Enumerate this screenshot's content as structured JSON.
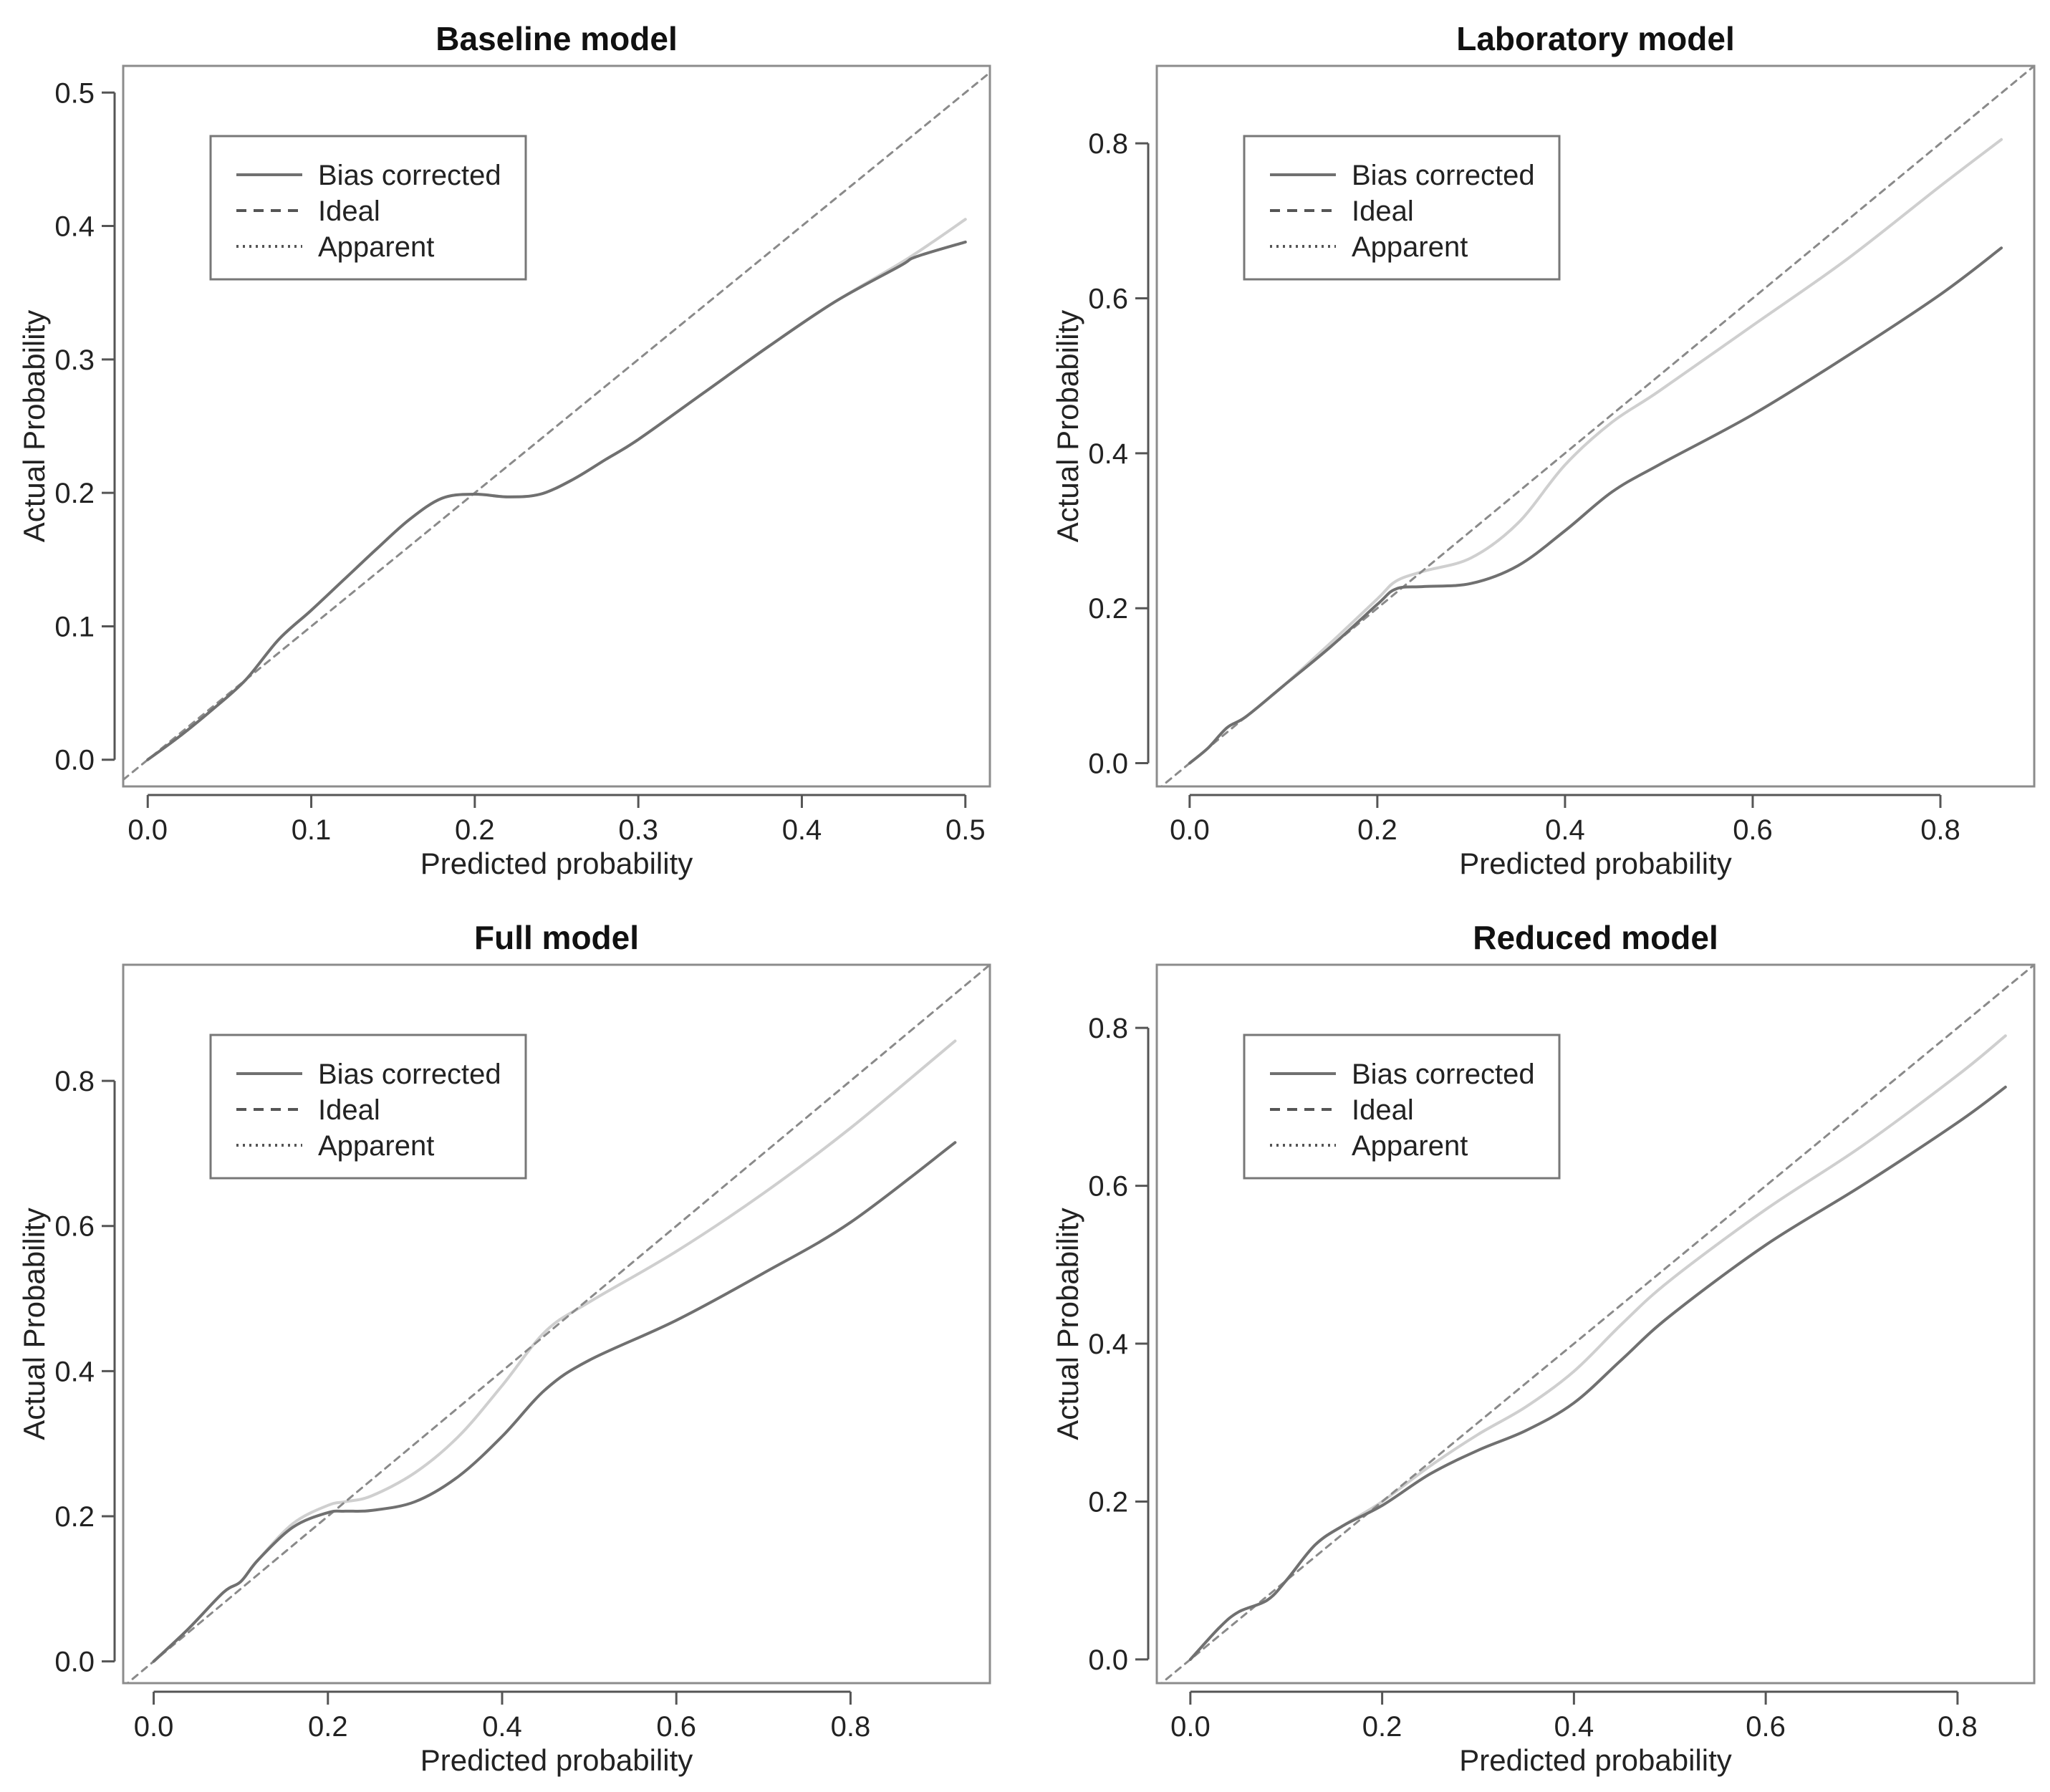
{
  "colors": {
    "bias_corrected": "#707070",
    "apparent": "#cfcfcf",
    "ideal": "#8a8a8a",
    "frame": "#8c8c8c",
    "text": "#222222",
    "background": "#ffffff"
  },
  "chart_data": [
    {
      "type": "line",
      "title": "Baseline model",
      "xlabel": "Predicted probability",
      "ylabel": "Actual Probability",
      "xlim": [
        -0.015,
        0.515
      ],
      "ylim": [
        -0.02,
        0.52
      ],
      "xticks": [
        0.0,
        0.1,
        0.2,
        0.3,
        0.4,
        0.5
      ],
      "xtick_labels": [
        "0.0",
        "0.1",
        "0.2",
        "0.3",
        "0.4",
        "0.5"
      ],
      "yticks": [
        0.0,
        0.1,
        0.2,
        0.3,
        0.4,
        0.5
      ],
      "ytick_labels": [
        "0.0",
        "0.1",
        "0.2",
        "0.3",
        "0.4",
        "0.5"
      ],
      "legend": {
        "position": "top-left",
        "entries": [
          "Bias corrected",
          "Ideal",
          "Apparent"
        ]
      },
      "series": [
        {
          "name": "Bias corrected",
          "style": "solid",
          "x": [
            0,
            0.02,
            0.04,
            0.06,
            0.08,
            0.1,
            0.12,
            0.14,
            0.16,
            0.18,
            0.2,
            0.22,
            0.24,
            0.26,
            0.28,
            0.3,
            0.34,
            0.38,
            0.42,
            0.46,
            0.47,
            0.5
          ],
          "y": [
            0,
            0.018,
            0.038,
            0.06,
            0.09,
            0.112,
            0.135,
            0.158,
            0.18,
            0.196,
            0.199,
            0.197,
            0.199,
            0.21,
            0.225,
            0.24,
            0.275,
            0.31,
            0.343,
            0.37,
            0.377,
            0.388
          ]
        },
        {
          "name": "Apparent",
          "style": "dotted",
          "x": [
            0,
            0.02,
            0.04,
            0.06,
            0.08,
            0.1,
            0.12,
            0.14,
            0.16,
            0.18,
            0.2,
            0.22,
            0.24,
            0.26,
            0.28,
            0.3,
            0.34,
            0.38,
            0.42,
            0.46,
            0.48,
            0.5
          ],
          "y": [
            0,
            0.018,
            0.038,
            0.06,
            0.09,
            0.112,
            0.135,
            0.158,
            0.18,
            0.196,
            0.199,
            0.197,
            0.199,
            0.21,
            0.225,
            0.24,
            0.275,
            0.31,
            0.343,
            0.372,
            0.388,
            0.405
          ]
        },
        {
          "name": "Ideal",
          "style": "dashed",
          "x": [
            -0.015,
            0.515
          ],
          "y": [
            -0.015,
            0.515
          ]
        }
      ]
    },
    {
      "type": "line",
      "title": "Laboratory model",
      "xlabel": "Predicted probability",
      "ylabel": "Actual Probability",
      "xlim": [
        -0.035,
        0.9
      ],
      "ylim": [
        -0.03,
        0.9
      ],
      "xticks": [
        0.0,
        0.2,
        0.4,
        0.6,
        0.8
      ],
      "xtick_labels": [
        "0.0",
        "0.2",
        "0.4",
        "0.6",
        "0.8"
      ],
      "yticks": [
        0.0,
        0.2,
        0.4,
        0.6,
        0.8
      ],
      "ytick_labels": [
        "0.0",
        "0.2",
        "0.4",
        "0.6",
        "0.8"
      ],
      "legend": {
        "position": "top-left",
        "entries": [
          "Bias corrected",
          "Ideal",
          "Apparent"
        ]
      },
      "series": [
        {
          "name": "Bias corrected",
          "style": "solid",
          "x": [
            0,
            0.02,
            0.04,
            0.06,
            0.1,
            0.15,
            0.2,
            0.22,
            0.25,
            0.3,
            0.35,
            0.4,
            0.45,
            0.5,
            0.6,
            0.7,
            0.8,
            0.865
          ],
          "y": [
            0,
            0.02,
            0.046,
            0.06,
            0.1,
            0.15,
            0.205,
            0.225,
            0.228,
            0.232,
            0.255,
            0.3,
            0.35,
            0.385,
            0.45,
            0.525,
            0.605,
            0.665
          ]
        },
        {
          "name": "Apparent",
          "style": "dotted",
          "x": [
            0,
            0.02,
            0.04,
            0.06,
            0.1,
            0.15,
            0.2,
            0.22,
            0.25,
            0.3,
            0.35,
            0.4,
            0.45,
            0.5,
            0.6,
            0.7,
            0.8,
            0.865
          ],
          "y": [
            0,
            0.02,
            0.046,
            0.06,
            0.1,
            0.155,
            0.212,
            0.235,
            0.248,
            0.265,
            0.31,
            0.385,
            0.44,
            0.48,
            0.565,
            0.65,
            0.745,
            0.805
          ]
        },
        {
          "name": "Ideal",
          "style": "dashed",
          "x": [
            -0.035,
            0.9
          ],
          "y": [
            -0.035,
            0.9
          ]
        }
      ]
    },
    {
      "type": "line",
      "title": "Full model",
      "xlabel": "Predicted probability",
      "ylabel": "Actual Probability",
      "xlim": [
        -0.035,
        0.96
      ],
      "ylim": [
        -0.03,
        0.96
      ],
      "xticks": [
        0.0,
        0.2,
        0.4,
        0.6,
        0.8
      ],
      "xtick_labels": [
        "0.0",
        "0.2",
        "0.4",
        "0.6",
        "0.8"
      ],
      "yticks": [
        0.0,
        0.2,
        0.4,
        0.6,
        0.8
      ],
      "ytick_labels": [
        "0.0",
        "0.2",
        "0.4",
        "0.6",
        "0.8"
      ],
      "legend": {
        "position": "top-left",
        "entries": [
          "Bias corrected",
          "Ideal",
          "Apparent"
        ]
      },
      "series": [
        {
          "name": "Bias corrected",
          "style": "solid",
          "x": [
            0,
            0.04,
            0.08,
            0.1,
            0.12,
            0.16,
            0.2,
            0.22,
            0.25,
            0.3,
            0.35,
            0.4,
            0.45,
            0.5,
            0.6,
            0.7,
            0.8,
            0.92
          ],
          "y": [
            0,
            0.045,
            0.095,
            0.11,
            0.14,
            0.185,
            0.205,
            0.207,
            0.208,
            0.22,
            0.255,
            0.31,
            0.375,
            0.415,
            0.47,
            0.535,
            0.605,
            0.715
          ]
        },
        {
          "name": "Apparent",
          "style": "dotted",
          "x": [
            0,
            0.04,
            0.08,
            0.1,
            0.12,
            0.16,
            0.2,
            0.22,
            0.25,
            0.3,
            0.35,
            0.4,
            0.45,
            0.5,
            0.6,
            0.7,
            0.8,
            0.92
          ],
          "y": [
            0,
            0.045,
            0.095,
            0.11,
            0.14,
            0.19,
            0.215,
            0.22,
            0.228,
            0.26,
            0.31,
            0.38,
            0.455,
            0.495,
            0.565,
            0.645,
            0.735,
            0.855
          ]
        },
        {
          "name": "Ideal",
          "style": "dashed",
          "x": [
            -0.035,
            0.96
          ],
          "y": [
            -0.035,
            0.96
          ]
        }
      ]
    },
    {
      "type": "line",
      "title": "Reduced model",
      "xlabel": "Predicted probability",
      "ylabel": "Actual Probability",
      "xlim": [
        -0.035,
        0.88
      ],
      "ylim": [
        -0.03,
        0.88
      ],
      "xticks": [
        0.0,
        0.2,
        0.4,
        0.6,
        0.8
      ],
      "xtick_labels": [
        "0.0",
        "0.2",
        "0.4",
        "0.6",
        "0.8"
      ],
      "yticks": [
        0.0,
        0.2,
        0.4,
        0.6,
        0.8
      ],
      "ytick_labels": [
        "0.0",
        "0.2",
        "0.4",
        "0.6",
        "0.8"
      ],
      "legend": {
        "position": "top-left",
        "entries": [
          "Bias corrected",
          "Ideal",
          "Apparent"
        ]
      },
      "series": [
        {
          "name": "Bias corrected",
          "style": "solid",
          "x": [
            0,
            0.03,
            0.05,
            0.08,
            0.1,
            0.13,
            0.16,
            0.2,
            0.25,
            0.3,
            0.35,
            0.4,
            0.45,
            0.5,
            0.6,
            0.7,
            0.8,
            0.85
          ],
          "y": [
            0,
            0.04,
            0.06,
            0.075,
            0.1,
            0.145,
            0.17,
            0.195,
            0.235,
            0.265,
            0.29,
            0.325,
            0.38,
            0.435,
            0.525,
            0.6,
            0.68,
            0.725
          ]
        },
        {
          "name": "Apparent",
          "style": "dotted",
          "x": [
            0,
            0.03,
            0.05,
            0.08,
            0.1,
            0.13,
            0.16,
            0.2,
            0.25,
            0.3,
            0.35,
            0.4,
            0.45,
            0.5,
            0.6,
            0.7,
            0.8,
            0.85
          ],
          "y": [
            0,
            0.04,
            0.06,
            0.075,
            0.1,
            0.145,
            0.17,
            0.2,
            0.245,
            0.285,
            0.32,
            0.365,
            0.425,
            0.48,
            0.57,
            0.65,
            0.74,
            0.79
          ]
        },
        {
          "name": "Ideal",
          "style": "dashed",
          "x": [
            -0.035,
            0.88
          ],
          "y": [
            -0.035,
            0.88
          ]
        }
      ]
    }
  ]
}
